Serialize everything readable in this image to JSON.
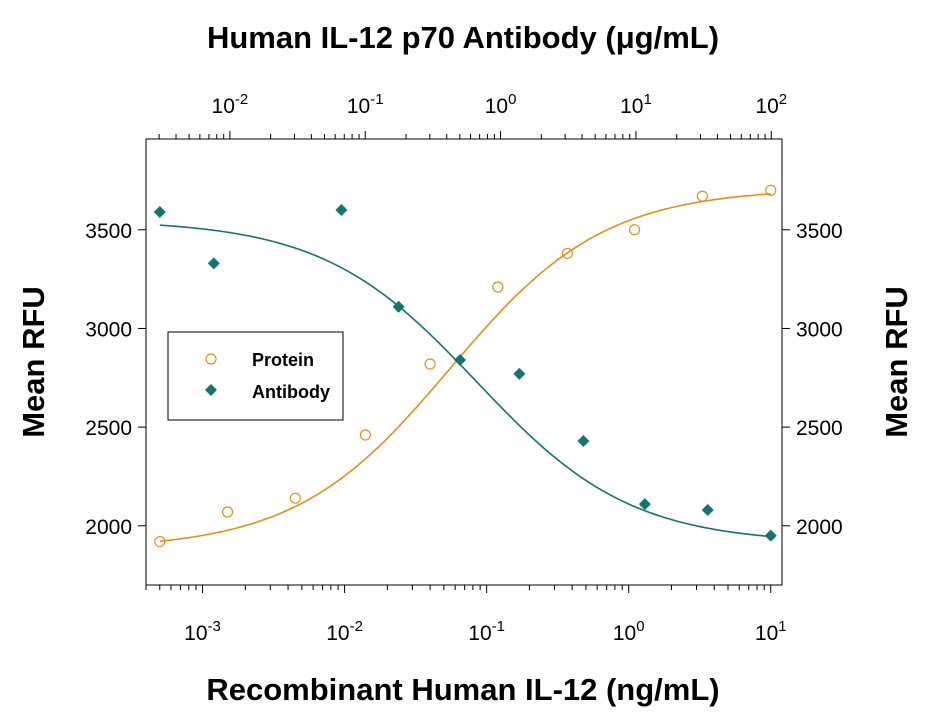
{
  "chart_data": {
    "type": "scatter",
    "title": "Human IL-12 p70 Antibody (μg/mL)",
    "xlabel": "Recombinant Human IL-12 (ng/mL)",
    "ylabel": "Mean RFU",
    "ylabel_right": "Mean RFU",
    "x_scale": "log",
    "x_range": [
      0.0004,
      12
    ],
    "y_range": [
      1700,
      3960
    ],
    "x_ticks": [
      {
        "value": 0.001,
        "base": "10",
        "exp": "-3"
      },
      {
        "value": 0.01,
        "base": "10",
        "exp": "-2"
      },
      {
        "value": 0.1,
        "base": "10",
        "exp": "-1"
      },
      {
        "value": 1,
        "base": "10",
        "exp": "0"
      },
      {
        "value": 10,
        "base": "10",
        "exp": "1"
      }
    ],
    "top_axis": {
      "scale": "log",
      "range": [
        0.0024,
        120
      ],
      "ticks": [
        {
          "value": 0.01,
          "base": "10",
          "exp": "-2"
        },
        {
          "value": 0.1,
          "base": "10",
          "exp": "-1"
        },
        {
          "value": 1,
          "base": "10",
          "exp": "0"
        },
        {
          "value": 10,
          "base": "10",
          "exp": "1"
        },
        {
          "value": 100,
          "base": "10",
          "exp": "2"
        }
      ]
    },
    "y_ticks": [
      2000,
      2500,
      3000,
      3500
    ],
    "grid": false,
    "legend": {
      "position": "center-left",
      "entries": [
        "Protein",
        "Antibody"
      ]
    },
    "series": [
      {
        "name": "Protein",
        "color": "#e0901a",
        "marker": "open-circle",
        "x": [
          0.0005,
          0.0015,
          0.0045,
          0.014,
          0.04,
          0.12,
          0.37,
          1.1,
          3.3,
          10
        ],
        "y": [
          1920,
          2070,
          2140,
          2460,
          2820,
          3210,
          3380,
          3500,
          3670,
          3700
        ],
        "fit": {
          "bottom": 1880,
          "top": 3710,
          "ec50": 0.055,
          "hill": 0.8
        }
      },
      {
        "name": "Antibody",
        "color": "#12756e",
        "marker": "filled-diamond",
        "x": [
          0.0005,
          0.0012,
          0.0095,
          0.024,
          0.065,
          0.17,
          0.48,
          1.3,
          3.6,
          10
        ],
        "y": [
          3590,
          3330,
          3600,
          3110,
          2840,
          2770,
          2430,
          2110,
          2080,
          1950
        ],
        "fit": {
          "bottom": 1910,
          "top": 3550,
          "ec50": 0.085,
          "hill": 0.8
        }
      }
    ]
  }
}
